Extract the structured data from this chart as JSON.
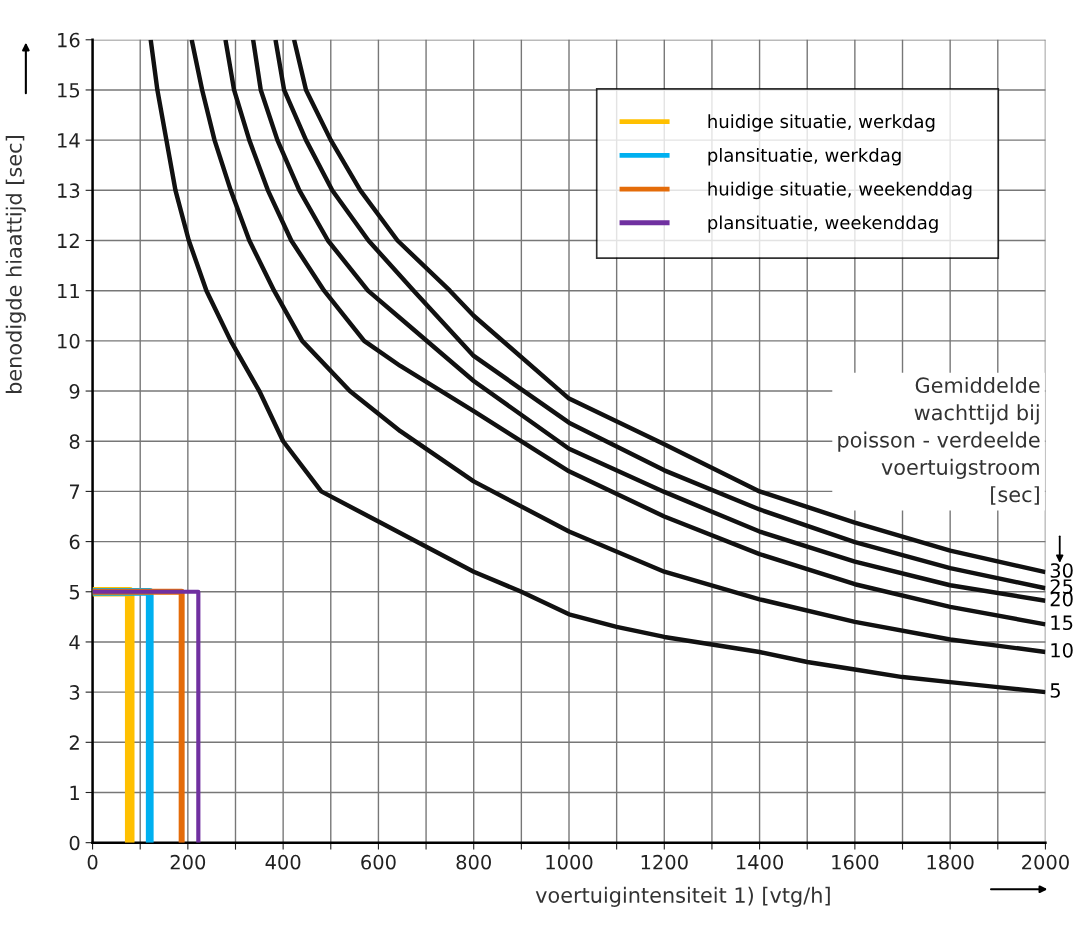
{
  "chart_data": {
    "type": "line",
    "xlabel": "voertuigintensiteit 1) [vtg/h]",
    "ylabel": "benodigde hiaattijd [sec]",
    "xlim": [
      0,
      2000
    ],
    "ylim": [
      0,
      16
    ],
    "xticks": [
      0,
      {
        "value": 100,
        "label": null
      },
      200,
      {
        "value": 300,
        "label": null
      },
      400,
      {
        "value": 500,
        "label": null
      },
      600,
      {
        "value": 700,
        "label": null
      },
      800,
      {
        "value": 900,
        "label": null
      },
      1000,
      {
        "value": 1100,
        "label": null
      },
      1200,
      {
        "value": 1300,
        "label": null
      },
      1400,
      {
        "value": 1500,
        "label": null
      },
      1600,
      {
        "value": 1700,
        "label": null
      },
      1800,
      {
        "value": 1900,
        "label": null
      },
      2000
    ],
    "yticks": [
      0,
      1,
      2,
      3,
      4,
      5,
      6,
      7,
      8,
      9,
      10,
      11,
      12,
      13,
      14,
      15,
      16
    ],
    "grid": true,
    "legend": "top right",
    "marker": "none",
    "line_style": "solid",
    "annotations": [
      "Gemiddelde\nwachttijd bij\npoisson - verdeelde\nvoertuigstroom\n[sec]"
    ],
    "series": [
      {
        "name": "30",
        "color": "#111111",
        "x": [
          423,
          448,
          500,
          562,
          640,
          750,
          800,
          1000,
          1200,
          1400,
          1600,
          1800,
          2000
        ],
        "values": [
          16,
          15,
          14,
          13,
          12,
          11,
          10.5,
          8.85,
          7.94,
          7.0,
          6.38,
          5.82,
          5.39
        ]
      },
      {
        "name": "25",
        "color": "#111111",
        "x": [
          384,
          402,
          448,
          503,
          579,
          674,
          800,
          1000,
          1200,
          1400,
          1600,
          1800,
          2000
        ],
        "values": [
          16,
          15,
          14,
          13,
          12,
          11,
          9.7,
          8.37,
          7.42,
          6.64,
          5.99,
          5.47,
          5.07
        ]
      },
      {
        "name": "20",
        "color": "#111111",
        "x": [
          337,
          353,
          388,
          434,
          494,
          578,
          646,
          800,
          1000,
          1200,
          1400,
          1600,
          1800,
          2000
        ],
        "values": [
          16,
          15,
          14,
          13,
          12,
          11,
          10.45,
          9.2,
          7.85,
          6.99,
          6.2,
          5.6,
          5.13,
          4.82
        ]
      },
      {
        "name": "15",
        "color": "#111111",
        "x": [
          279,
          297,
          329,
          368,
          417,
          486,
          570,
          646,
          800,
          1000,
          1200,
          1400,
          1600,
          1800,
          2000
        ],
        "values": [
          16,
          15,
          14,
          13,
          12,
          11,
          10,
          9.5,
          8.6,
          7.4,
          6.5,
          5.75,
          5.15,
          4.7,
          4.35
        ]
      },
      {
        "name": "10",
        "color": "#111111",
        "x": [
          208,
          230,
          256,
          290,
          329,
          381,
          440,
          540,
          646,
          800,
          1000,
          1200,
          1400,
          1600,
          1800,
          2000
        ],
        "values": [
          16,
          15,
          14,
          13,
          12,
          11,
          10,
          9.0,
          8.2,
          7.2,
          6.2,
          5.4,
          4.85,
          4.4,
          4.05,
          3.8
        ]
      },
      {
        "name": "5",
        "color": "#111111",
        "x": [
          122,
          136,
          155,
          174,
          202,
          239,
          290,
          350,
          400,
          480,
          600,
          800,
          900,
          1000,
          1100,
          1200,
          1300,
          1400,
          1500,
          1600,
          1700,
          1800,
          1900,
          2000
        ],
        "values": [
          16,
          15,
          14,
          13,
          12,
          11,
          10,
          9,
          8,
          7,
          6.4,
          5.4,
          5.0,
          4.55,
          4.3,
          4.1,
          3.95,
          3.8,
          3.6,
          3.45,
          3.3,
          3.2,
          3.1,
          3.0
        ]
      },
      {
        "name": "huidige situatie, werkdag",
        "color": "#ffc000",
        "x": [
          0,
          78,
          78
        ],
        "values": [
          5,
          5,
          0
        ]
      },
      {
        "name": "plansituatie, werkdag",
        "color": "#00b0f0",
        "x": [
          0,
          120,
          120
        ],
        "values": [
          5,
          5,
          0
        ]
      },
      {
        "name": "huidige situatie, weekenddag",
        "color": "#e46c0a",
        "x": [
          0,
          187,
          187
        ],
        "values": [
          5,
          5,
          0
        ]
      },
      {
        "name": "plansituatie, weekenddag",
        "color": "#7030a0",
        "x": [
          0,
          222,
          222
        ],
        "values": [
          5,
          5,
          0
        ]
      }
    ]
  }
}
